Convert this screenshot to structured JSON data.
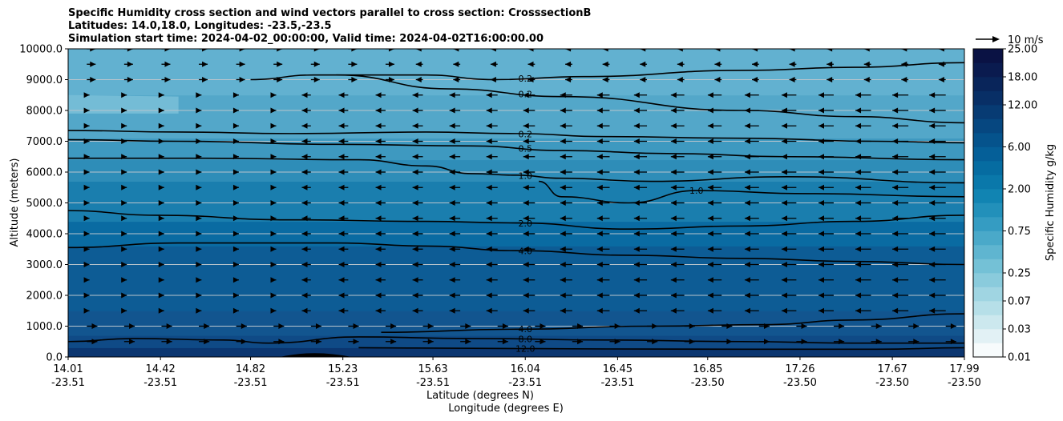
{
  "title": {
    "line1": "Specific Humidity cross section and wind vectors parallel to cross section: CrosssectionB",
    "line2": "Latitudes: 14.0,18.0, Longitudes: -23.5,-23.5",
    "line3": "Simulation start time: 2024-04-02_00:00:00, Valid time: 2024-04-02T16:00:00.00"
  },
  "chart_data": {
    "type": "heatmap",
    "ylabel": "Altitude (meters)",
    "xlabel_lat": "Latitude (degrees N)",
    "xlabel_lon": "Longitude (degrees E)",
    "ylim": [
      0,
      10000
    ],
    "yticks": [
      "0.0",
      "1000.0",
      "2000.0",
      "3000.0",
      "4000.0",
      "5000.0",
      "6000.0",
      "7000.0",
      "8000.0",
      "9000.0",
      "10000.0"
    ],
    "xticks": [
      {
        "lat": "14.01",
        "lon": "-23.51"
      },
      {
        "lat": "14.42",
        "lon": "-23.51"
      },
      {
        "lat": "14.82",
        "lon": "-23.51"
      },
      {
        "lat": "15.23",
        "lon": "-23.51"
      },
      {
        "lat": "15.63",
        "lon": "-23.51"
      },
      {
        "lat": "16.04",
        "lon": "-23.51"
      },
      {
        "lat": "16.45",
        "lon": "-23.51"
      },
      {
        "lat": "16.85",
        "lon": "-23.50"
      },
      {
        "lat": "17.26",
        "lon": "-23.50"
      },
      {
        "lat": "17.67",
        "lon": "-23.50"
      },
      {
        "lat": "17.99",
        "lon": "-23.50"
      }
    ],
    "colorbar": {
      "label": "Specific Humidity g/kg",
      "levels": [
        0.01,
        0.02,
        0.03,
        0.05,
        0.07,
        0.1,
        0.25,
        0.4,
        0.5,
        0.75,
        1.0,
        1.5,
        2.0,
        3.0,
        4.0,
        6.0,
        8.0,
        10.0,
        12.0,
        15.0,
        18.0,
        20.0,
        25.0
      ],
      "tick_labels": [
        "0.01",
        "0.03",
        "0.07",
        "0.25",
        "0.75",
        "2.00",
        "6.00",
        "12.00",
        "18.00",
        "25.00"
      ]
    },
    "quiver_key": "10 m/s",
    "contours": [
      {
        "label": "0.2",
        "points": [
          [
            14.82,
            9000
          ],
          [
            15.1,
            9150
          ],
          [
            15.6,
            9150
          ],
          [
            15.9,
            9000
          ],
          [
            16.3,
            9100
          ],
          [
            17.0,
            9300
          ],
          [
            17.5,
            9400
          ],
          [
            17.99,
            9550
          ]
        ]
      },
      {
        "label": "0.2",
        "points": [
          [
            14.01,
            7350
          ],
          [
            14.5,
            7300
          ],
          [
            15.0,
            7250
          ],
          [
            15.6,
            7300
          ],
          [
            16.0,
            7250
          ],
          [
            16.4,
            7150
          ],
          [
            17.0,
            7100
          ],
          [
            17.6,
            7000
          ],
          [
            17.99,
            6950
          ]
        ]
      },
      {
        "label": "0.2",
        "points": [
          [
            15.2,
            9150
          ],
          [
            15.7,
            8700
          ],
          [
            16.2,
            8450
          ],
          [
            17.0,
            8000
          ],
          [
            17.5,
            7800
          ],
          [
            17.99,
            7600
          ]
        ]
      },
      {
        "label": "0.5",
        "points": [
          [
            14.01,
            7050
          ],
          [
            14.5,
            7000
          ],
          [
            15.2,
            6900
          ],
          [
            15.8,
            6850
          ],
          [
            16.2,
            6700
          ],
          [
            16.7,
            6600
          ],
          [
            17.2,
            6500
          ],
          [
            17.99,
            6400
          ]
        ]
      },
      {
        "label": "1.0",
        "points": [
          [
            14.01,
            6450
          ],
          [
            14.6,
            6450
          ],
          [
            15.3,
            6400
          ],
          [
            15.6,
            6200
          ],
          [
            15.8,
            5950
          ],
          [
            16.0,
            5900
          ],
          [
            16.2,
            5800
          ],
          [
            16.6,
            5700
          ],
          [
            17.2,
            5850
          ],
          [
            17.99,
            5650
          ]
        ]
      },
      {
        "label": "1.0",
        "points": [
          [
            16.1,
            5700
          ],
          [
            16.2,
            5200
          ],
          [
            16.5,
            5000
          ],
          [
            16.8,
            5400
          ],
          [
            17.3,
            5300
          ],
          [
            17.99,
            5200
          ]
        ]
      },
      {
        "label": "2.0",
        "points": [
          [
            14.01,
            4750
          ],
          [
            14.4,
            4600
          ],
          [
            15.0,
            4450
          ],
          [
            15.6,
            4400
          ],
          [
            16.0,
            4350
          ],
          [
            16.5,
            4150
          ],
          [
            17.0,
            4250
          ],
          [
            17.5,
            4400
          ],
          [
            17.99,
            4600
          ]
        ]
      },
      {
        "label": "4.0",
        "points": [
          [
            14.01,
            3550
          ],
          [
            14.5,
            3700
          ],
          [
            15.2,
            3700
          ],
          [
            15.6,
            3600
          ],
          [
            16.0,
            3450
          ],
          [
            16.5,
            3300
          ],
          [
            17.0,
            3200
          ],
          [
            17.5,
            3100
          ],
          [
            17.99,
            3000
          ]
        ]
      },
      {
        "label": "4.0",
        "points": [
          [
            15.4,
            800
          ],
          [
            16.0,
            900
          ],
          [
            16.6,
            1000
          ],
          [
            17.1,
            1050
          ],
          [
            17.5,
            1200
          ],
          [
            17.99,
            1400
          ]
        ]
      },
      {
        "label": "8.0",
        "points": [
          [
            14.01,
            500
          ],
          [
            14.3,
            600
          ],
          [
            14.7,
            550
          ],
          [
            14.9,
            450
          ],
          [
            15.3,
            650
          ],
          [
            15.8,
            600
          ],
          [
            16.4,
            550
          ],
          [
            17.0,
            500
          ],
          [
            17.5,
            450
          ],
          [
            17.99,
            450
          ]
        ]
      },
      {
        "label": "12.0",
        "points": [
          [
            15.3,
            300
          ],
          [
            15.8,
            280
          ],
          [
            16.4,
            260
          ],
          [
            17.0,
            250
          ],
          [
            17.6,
            250
          ],
          [
            17.99,
            300
          ]
        ]
      }
    ]
  }
}
